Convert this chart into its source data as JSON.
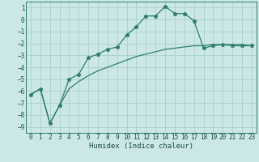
{
  "xlabel": "Humidex (Indice chaleur)",
  "ylabel": "",
  "background_color": "#cce8e6",
  "grid_color": "#aacece",
  "line_color": "#2e7d6e",
  "xlim": [
    -0.5,
    23.5
  ],
  "ylim": [
    -9.5,
    1.5
  ],
  "xticks": [
    0,
    1,
    2,
    3,
    4,
    5,
    6,
    7,
    8,
    9,
    10,
    11,
    12,
    13,
    14,
    15,
    16,
    17,
    18,
    19,
    20,
    21,
    22,
    23
  ],
  "yticks": [
    1,
    0,
    -1,
    -2,
    -3,
    -4,
    -5,
    -6,
    -7,
    -8,
    -9
  ],
  "series1_x": [
    0,
    1,
    2,
    3,
    4,
    5,
    6,
    7,
    8,
    9,
    10,
    11,
    12,
    13,
    14,
    15,
    16,
    17,
    18,
    19,
    20,
    21,
    22,
    23
  ],
  "series1_y": [
    -6.3,
    -5.8,
    -8.7,
    -7.2,
    -5.0,
    -4.6,
    -3.2,
    -2.9,
    -2.5,
    -2.3,
    -1.3,
    -0.6,
    0.3,
    0.3,
    1.1,
    0.5,
    0.5,
    -0.1,
    -2.4,
    -2.2,
    -2.1,
    -2.2,
    -2.2,
    -2.2
  ],
  "series2_x": [
    0,
    1,
    2,
    3,
    4,
    5,
    6,
    7,
    8,
    9,
    10,
    11,
    12,
    13,
    14,
    15,
    16,
    17,
    18,
    19,
    20,
    21,
    22,
    23
  ],
  "series2_y": [
    -6.3,
    -5.8,
    -8.7,
    -7.2,
    -5.8,
    -5.2,
    -4.7,
    -4.3,
    -4.0,
    -3.7,
    -3.4,
    -3.1,
    -2.9,
    -2.7,
    -2.5,
    -2.4,
    -2.3,
    -2.2,
    -2.2,
    -2.1,
    -2.1,
    -2.1,
    -2.1,
    -2.2
  ],
  "tick_fontsize": 5.5,
  "xlabel_fontsize": 6.5
}
